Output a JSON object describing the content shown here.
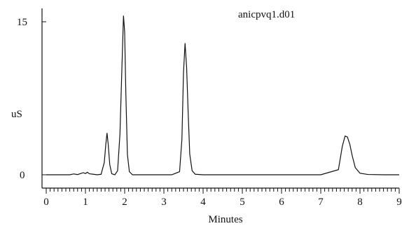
{
  "chart_data": {
    "type": "line",
    "title": "anicpvq1.d01",
    "xlabel": "Minutes",
    "ylabel": "uS",
    "xlim": [
      0,
      9
    ],
    "ylim": [
      -1,
      16
    ],
    "x_ticks": [
      "0",
      "1",
      "2",
      "3",
      "4",
      "5",
      "6",
      "7",
      "8",
      "9"
    ],
    "y_ticks": [
      "0",
      "15"
    ],
    "grid": false,
    "series": [
      {
        "x": [
          0,
          0.3,
          0.6,
          0.7,
          0.75,
          0.8,
          0.9,
          0.95,
          1.0,
          1.05,
          1.1,
          1.2,
          1.3,
          1.4,
          1.48,
          1.52,
          1.55,
          1.58,
          1.62,
          1.67,
          1.75,
          1.82,
          1.88,
          1.93,
          1.97,
          2.0,
          2.03,
          2.07,
          2.12,
          2.2,
          2.4,
          2.8,
          3.2,
          3.4,
          3.46,
          3.5,
          3.54,
          3.58,
          3.62,
          3.66,
          3.72,
          3.8,
          4.0,
          5.0,
          6.0,
          7.0,
          7.45,
          7.55,
          7.62,
          7.68,
          7.74,
          7.8,
          7.88,
          8.0,
          8.2,
          8.6,
          9.0
        ],
        "y": [
          0,
          0,
          0,
          0.08,
          0.05,
          0.02,
          0.15,
          0.2,
          0.12,
          0.25,
          0.1,
          0.05,
          0,
          0.05,
          1.2,
          3.0,
          4.1,
          3.0,
          1.0,
          0.1,
          0,
          0.4,
          4.0,
          10.5,
          15.6,
          14.0,
          8.0,
          2.0,
          0.3,
          0,
          0,
          0,
          0,
          0.3,
          3.5,
          10.0,
          12.9,
          10.5,
          6.0,
          2.0,
          0.4,
          0.05,
          0,
          0,
          0,
          0,
          0.5,
          2.8,
          3.8,
          3.7,
          3.0,
          1.9,
          0.7,
          0.15,
          0.03,
          0,
          0
        ]
      }
    ]
  }
}
